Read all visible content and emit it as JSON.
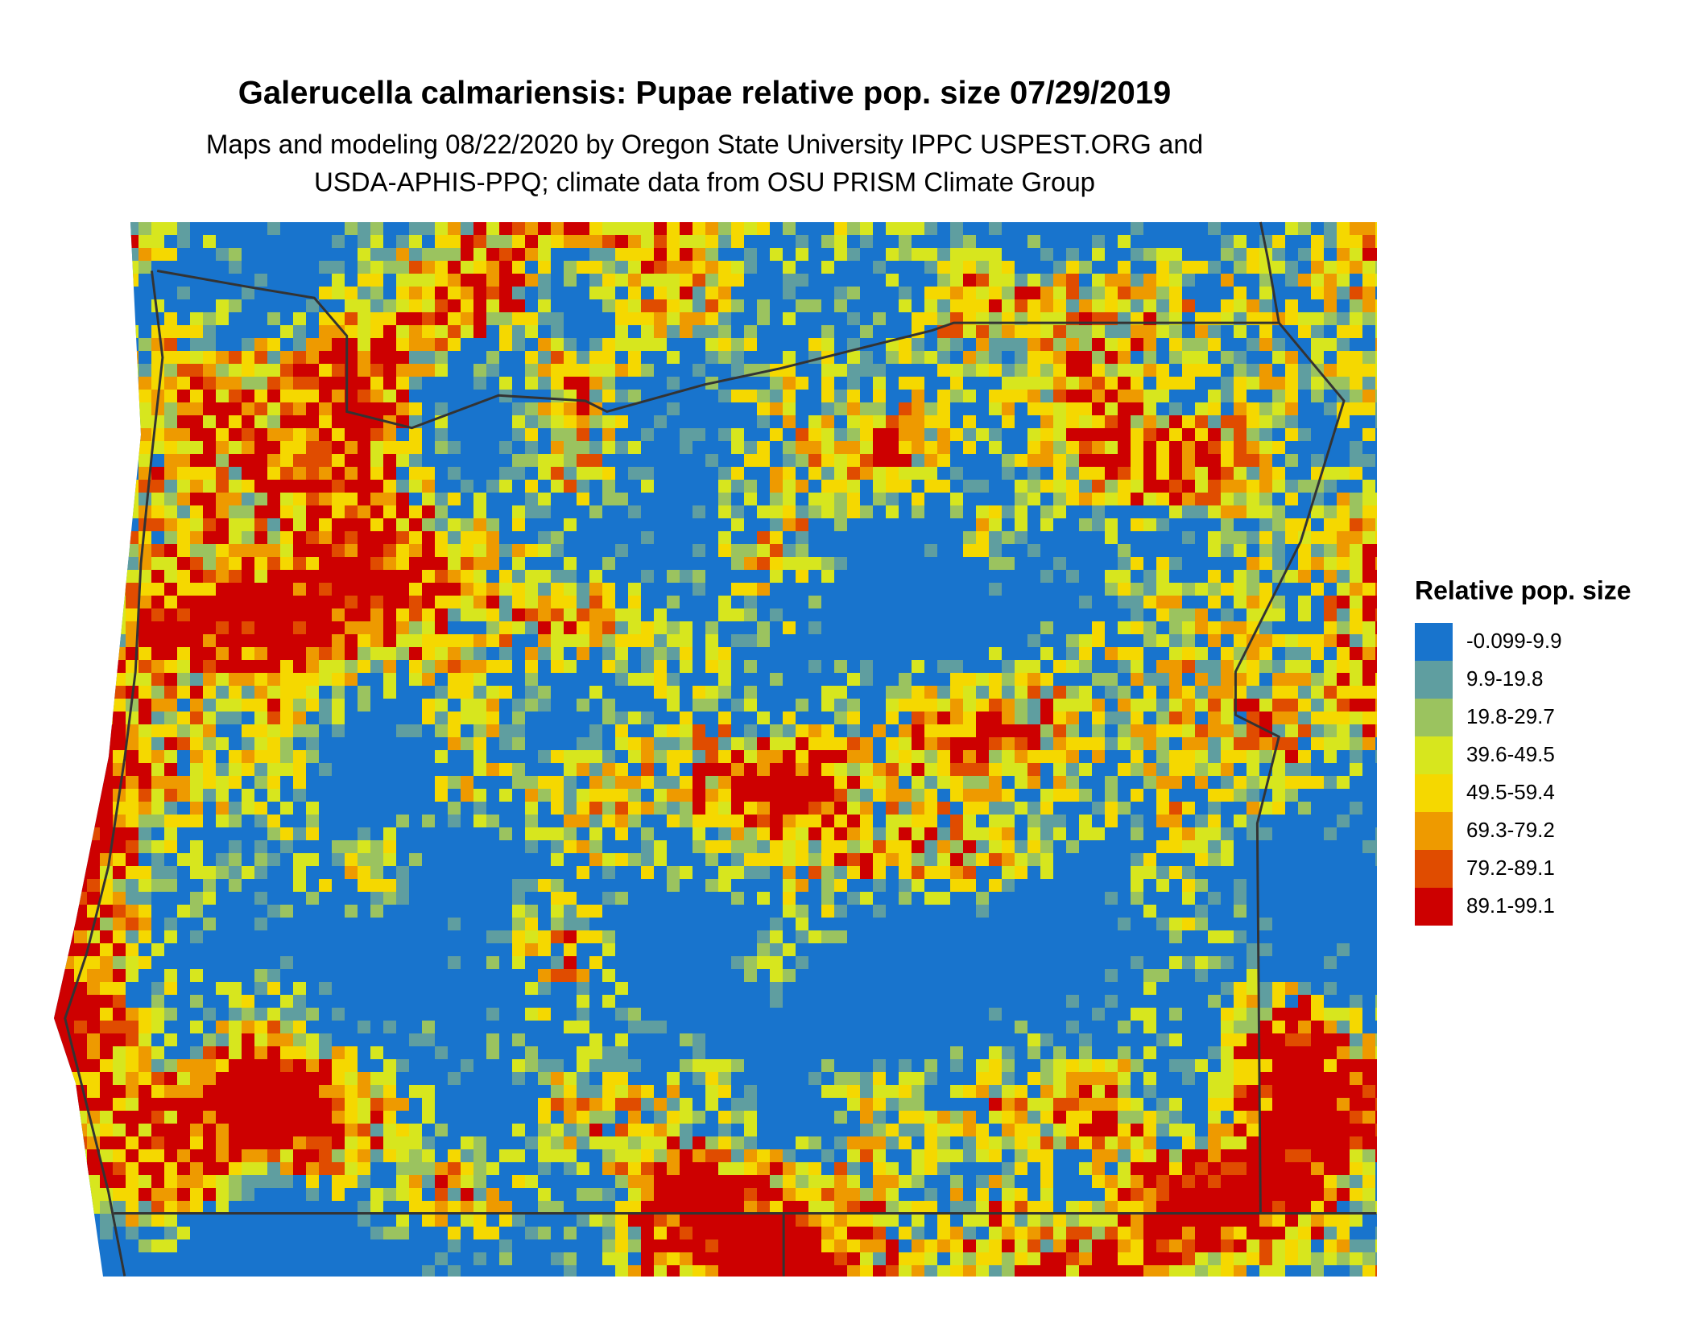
{
  "header": {
    "title": "Galerucella calmariensis: Pupae relative pop. size 07/29/2019",
    "subtitle": [
      "Maps and modeling 08/22/2020 by Oregon State University IPPC USPEST.ORG and",
      "USDA-APHIS-PPQ; climate data from OSU PRISM Climate Group"
    ]
  },
  "legend": {
    "title": "Relative pop. size",
    "items": [
      {
        "label": "-0.099-9.9",
        "color": "#1874cd"
      },
      {
        "label": "9.9-19.8",
        "color": "#5f9ea0"
      },
      {
        "label": "19.8-29.7",
        "color": "#9bc35f"
      },
      {
        "label": "39.6-49.5",
        "color": "#d7e61e"
      },
      {
        "label": "49.5-59.4",
        "color": "#f5d800"
      },
      {
        "label": "69.3-79.2",
        "color": "#ee9a00"
      },
      {
        "label": "79.2-89.1",
        "color": "#e04c00"
      },
      {
        "label": "89.1-99.1",
        "color": "#cd0000"
      }
    ]
  }
}
